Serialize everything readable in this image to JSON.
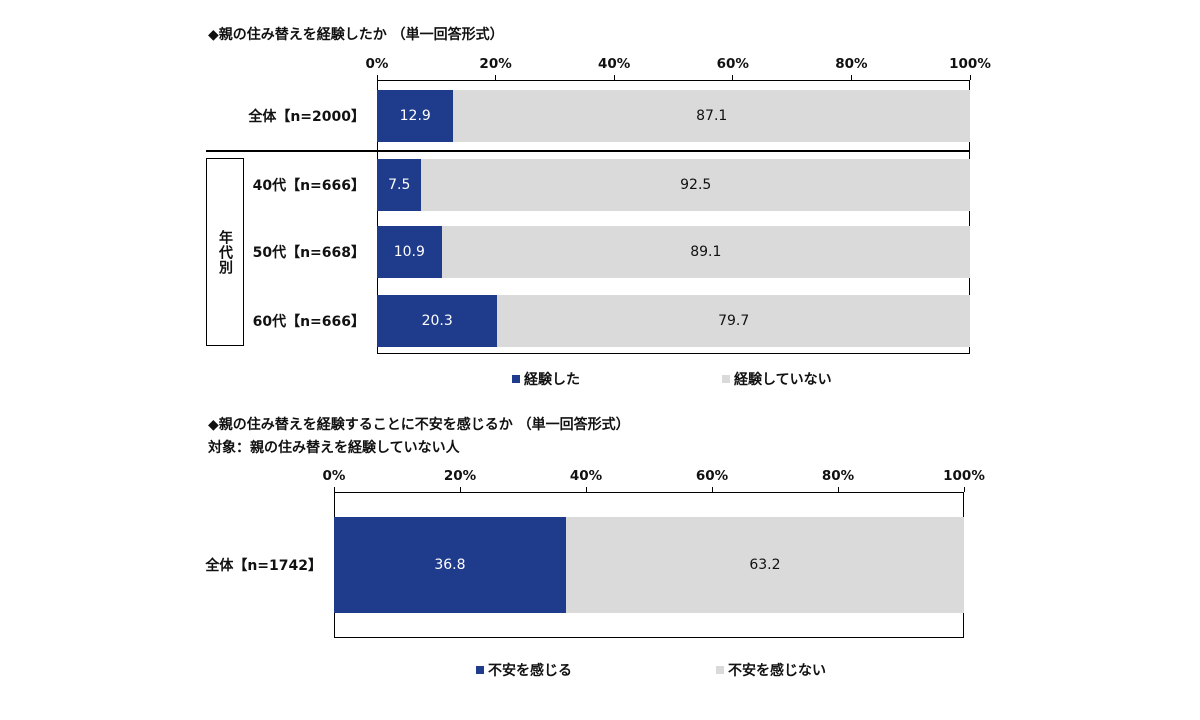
{
  "colors": {
    "experienced": "#1f3b8c",
    "not": "#dadada"
  },
  "chart_data": [
    {
      "type": "bar",
      "orientation": "horizontal-stacked",
      "title": "◆親の住み替えを経験したか （単一回答形式）",
      "xticks": [
        "0%",
        "20%",
        "40%",
        "60%",
        "80%",
        "100%"
      ],
      "xlim": [
        0,
        100
      ],
      "categories": [
        "全体【n=2000】",
        "40代【n=666】",
        "50代【n=668】",
        "60代【n=666】"
      ],
      "group_label": "年代別",
      "series": [
        {
          "name": "経験した",
          "values": [
            12.9,
            7.5,
            10.9,
            20.3
          ]
        },
        {
          "name": "経験していない",
          "values": [
            87.1,
            92.5,
            89.1,
            79.7
          ]
        }
      ],
      "labels": [
        [
          "12.9",
          "7.5",
          "10.9",
          "20.3"
        ],
        [
          "87.1",
          "92.5",
          "89.1",
          "79.7"
        ]
      ]
    },
    {
      "type": "bar",
      "orientation": "horizontal-stacked",
      "title": "◆親の住み替えを経験することに不安を感じるか （単一回答形式）",
      "subtitle": "対象：親の住み替えを経験していない人",
      "xticks": [
        "0%",
        "20%",
        "40%",
        "60%",
        "80%",
        "100%"
      ],
      "xlim": [
        0,
        100
      ],
      "categories": [
        "全体【n=1742】"
      ],
      "series": [
        {
          "name": "不安を感じる",
          "values": [
            36.8
          ]
        },
        {
          "name": "不安を感じない",
          "values": [
            63.2
          ]
        }
      ],
      "labels": [
        [
          "36.8"
        ],
        [
          "63.2"
        ]
      ]
    }
  ]
}
